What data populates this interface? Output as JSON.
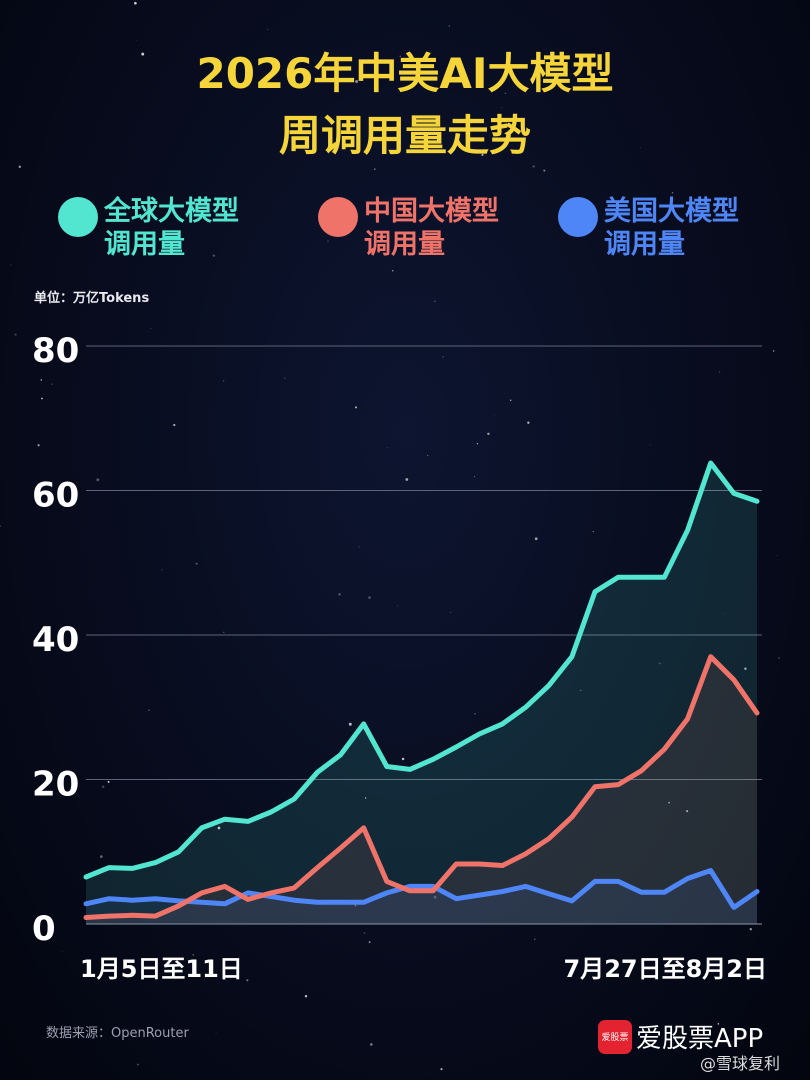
{
  "header": {
    "title_line1": "2026年中美AI大模型",
    "title_line2": "周调用量走势"
  },
  "legend": [
    {
      "label": "全球大模型调用量",
      "color": "#52e5cf"
    },
    {
      "label": "中国大模型调用量",
      "color": "#f0736a"
    },
    {
      "label": "美国大模型调用量",
      "color": "#4f86f7"
    }
  ],
  "unit_label": "单位：万亿Tokens",
  "source_label": "数据来源：OpenRouter",
  "brand": {
    "logo_text": "爱股票",
    "name": "爱股票APP",
    "weibo": "@雪球复利"
  },
  "chart_data": {
    "type": "area",
    "title": "2026年中美AI大模型周调用量走势",
    "ylabel": "单位：万亿Tokens",
    "ylim": [
      0,
      80
    ],
    "y_ticks": [
      0,
      20,
      40,
      60,
      80
    ],
    "grid": true,
    "legend_position": "top",
    "x_tick_labels": [
      "1月5日至11日",
      "7月27日至8月2日"
    ],
    "series": [
      {
        "name": "全球大模型调用量",
        "color": "#52e5cf",
        "values": [
          6.5,
          7.8,
          7.7,
          8.5,
          10,
          13.3,
          14.5,
          14.2,
          15.5,
          17.3,
          21,
          23.4,
          27.7,
          21.8,
          21.4,
          22.8,
          24.5,
          26.3,
          27.7,
          30,
          33,
          37,
          46,
          48,
          48,
          48,
          54.5,
          63.8,
          59.6,
          58.5
        ]
      },
      {
        "name": "中国大模型调用量",
        "color": "#f0736a",
        "values": [
          0.9,
          1.1,
          1.2,
          1.1,
          2.5,
          4.3,
          5.2,
          3.4,
          4.3,
          5,
          7.8,
          10.5,
          13.3,
          5.9,
          4.6,
          4.6,
          8.3,
          8.3,
          8.1,
          9.7,
          11.8,
          14.8,
          19,
          19.3,
          21.2,
          24.2,
          28.4,
          37,
          33.8,
          29.2
        ]
      },
      {
        "name": "美国大模型调用量",
        "color": "#4f86f7",
        "values": [
          2.8,
          3.5,
          3.3,
          3.5,
          3.2,
          3,
          2.8,
          4.3,
          3.8,
          3.3,
          3,
          3,
          3,
          4.3,
          5.2,
          5.2,
          3.5,
          4,
          4.5,
          5.2,
          4.2,
          3.2,
          5.9,
          5.9,
          4.4,
          4.4,
          6.3,
          7.4,
          2.3,
          4.5
        ]
      }
    ]
  }
}
